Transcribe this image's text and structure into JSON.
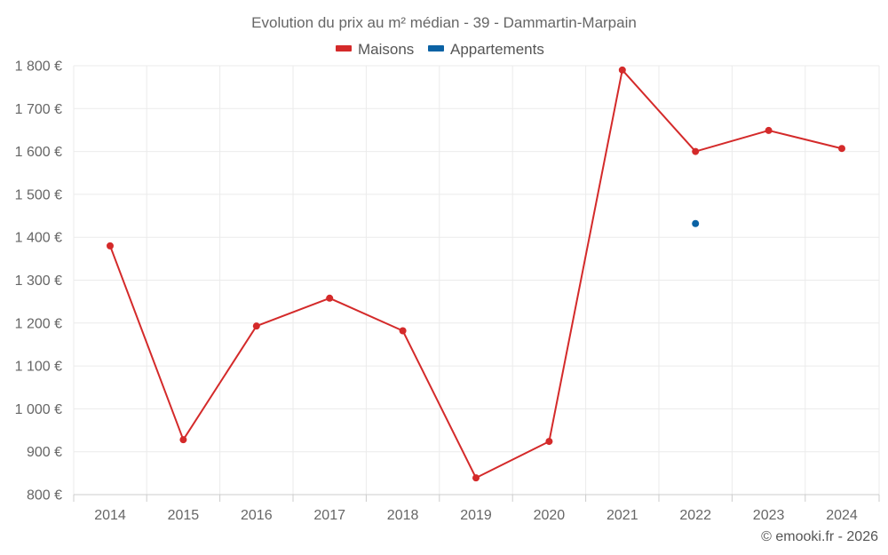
{
  "chart_data": {
    "type": "line",
    "title": "Evolution du prix au m² médian - 39 - Dammartin-Marpain",
    "categories": [
      "2014",
      "2015",
      "2016",
      "2017",
      "2018",
      "2019",
      "2020",
      "2021",
      "2022",
      "2023",
      "2024"
    ],
    "series": [
      {
        "name": "Maisons",
        "color": "#d42a2a",
        "values": [
          1380,
          928,
          1193,
          1258,
          1182,
          839,
          924,
          1790,
          1600,
          1649,
          1607
        ]
      },
      {
        "name": "Appartements",
        "color": "#0b62a4",
        "values": [
          null,
          null,
          null,
          null,
          null,
          null,
          null,
          null,
          1432,
          null,
          null
        ]
      }
    ],
    "ylim": [
      800,
      1800
    ],
    "yticks": [
      800,
      900,
      1000,
      1100,
      1200,
      1300,
      1400,
      1500,
      1600,
      1700,
      1800
    ],
    "ytick_labels": [
      "800 €",
      "900 €",
      "1 000 €",
      "1 100 €",
      "1 200 €",
      "1 300 €",
      "1 400 €",
      "1 500 €",
      "1 600 €",
      "1 700 €",
      "1 800 €"
    ],
    "xlabel": "",
    "ylabel": "",
    "legend_position": "top-center",
    "grid": true
  },
  "credit": "© emooki.fr - 2026"
}
